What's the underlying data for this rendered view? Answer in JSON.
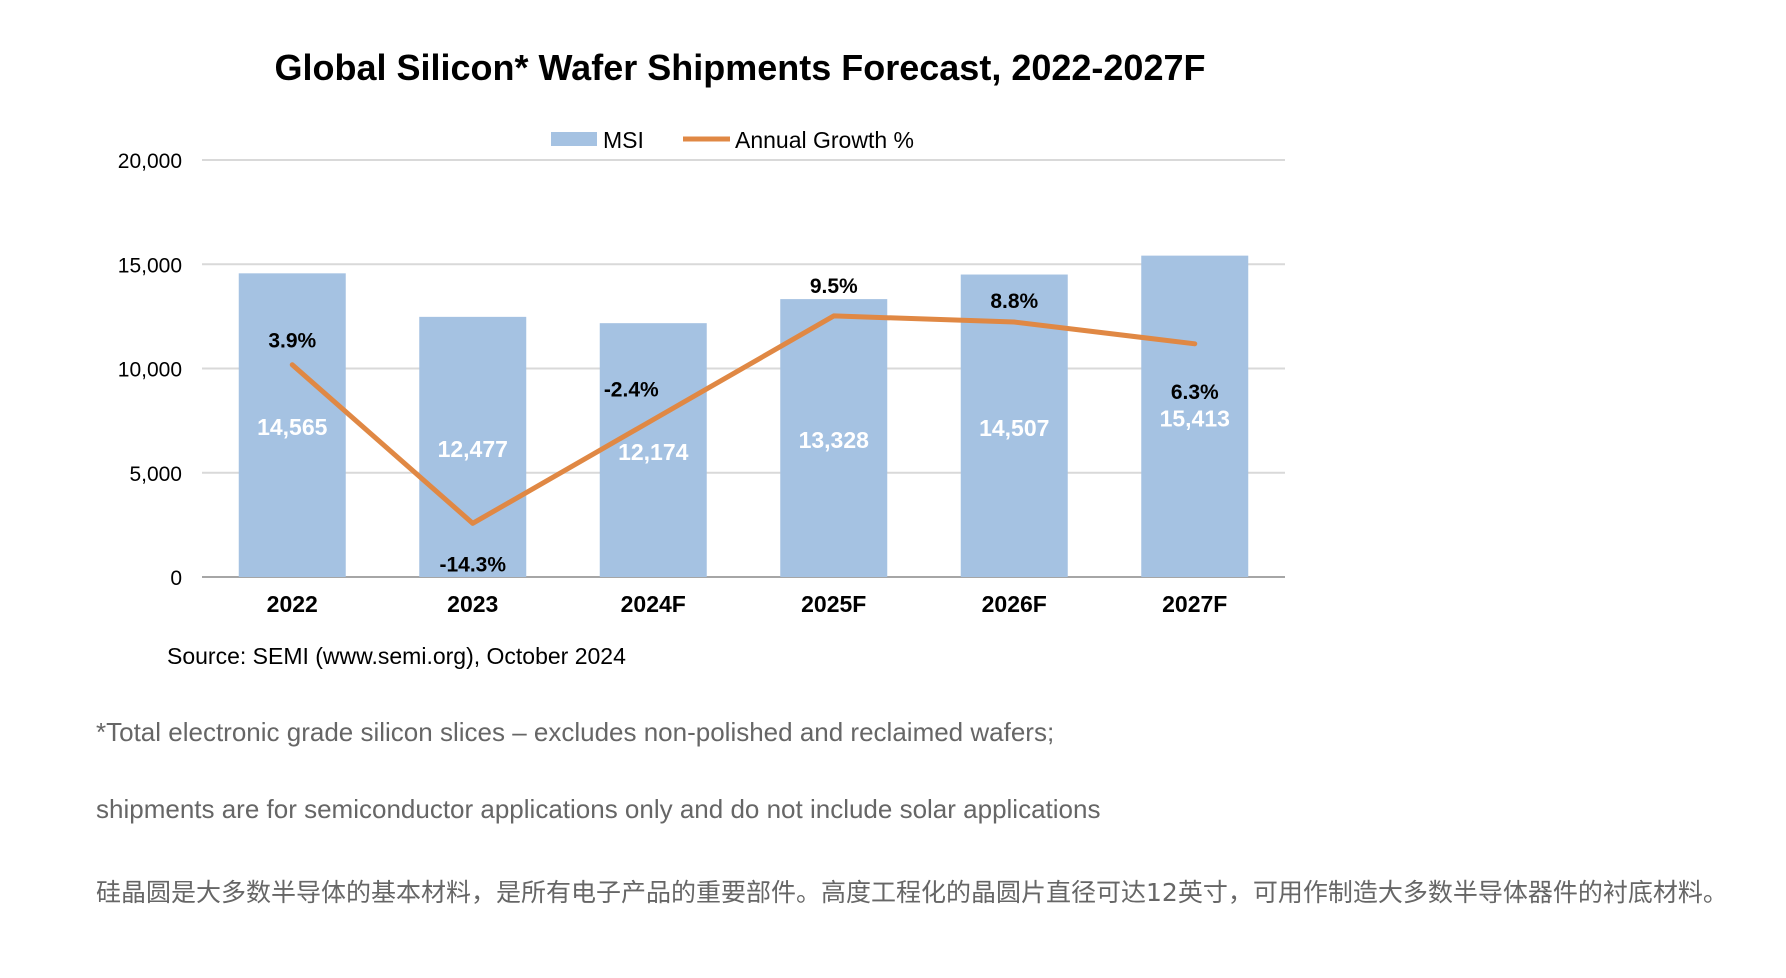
{
  "chart_data": {
    "type": "bar",
    "title": "Global Silicon* Wafer Shipments Forecast, 2022-2027F",
    "categories": [
      "2022",
      "2023",
      "2024F",
      "2025F",
      "2026F",
      "2027F"
    ],
    "series": [
      {
        "name": "MSI",
        "type": "bar",
        "values": [
          14565,
          12477,
          12174,
          13328,
          14507,
          15413
        ],
        "labels": [
          "14,565",
          "12,477",
          "12,174",
          "13,328",
          "14,507",
          "15,413"
        ],
        "color": "#a5c2e2"
      },
      {
        "name": "Annual Growth %",
        "type": "line",
        "values": [
          3.9,
          -14.3,
          -2.4,
          9.5,
          8.8,
          6.3
        ],
        "labels": [
          "3.9%",
          "-14.3%",
          "-2.4%",
          "9.5%",
          "8.8%",
          "6.3%"
        ],
        "color": "#e08844"
      }
    ],
    "ylim": [
      0,
      20000
    ],
    "yticks": [
      0,
      5000,
      10000,
      15000,
      20000
    ],
    "ytick_labels": [
      "0",
      "5,000",
      "10,000",
      "15,000",
      "20,000"
    ],
    "grid": true,
    "legend_position": "top-center",
    "source": "Source: SEMI (www.semi.org), October 2024"
  },
  "notes": {
    "footnote_1": "*Total electronic grade silicon slices – excludes non-polished and reclaimed wafers;",
    "footnote_2": "shipments are for semiconductor applications only and do not include solar applications",
    "description_cn": "硅晶圆是大多数半导体的基本材料，是所有电子产品的重要部件。高度工程化的晶圆片直径可达12英寸，可用作制造大多数半导体器件的衬底材料。"
  }
}
